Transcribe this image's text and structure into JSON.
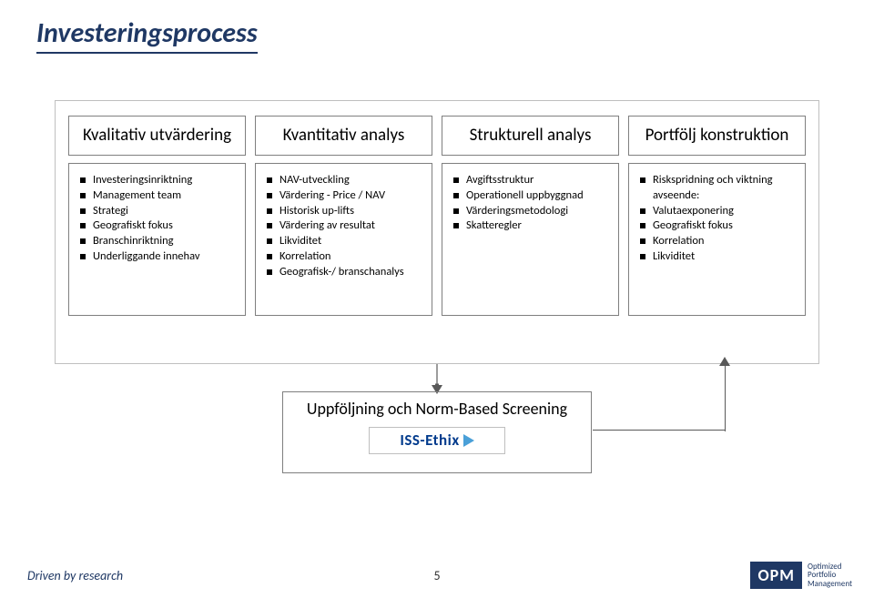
{
  "title": "Investeringsprocess",
  "columns": [
    {
      "heading": "Kvalitativ utvärdering",
      "items": [
        "Investeringsinriktning",
        "Management team",
        "Strategi",
        "Geografiskt fokus",
        "Branschinriktning",
        "Underliggande innehav"
      ]
    },
    {
      "heading": "Kvantitativ analys",
      "items": [
        "NAV-utveckling",
        "Värdering - Price / NAV",
        "Historisk up-lifts",
        "Värdering av resultat",
        "Likviditet",
        "Korrelation",
        "Geografisk-/ branschanalys"
      ]
    },
    {
      "heading": "Strukturell analys",
      "items": [
        "Avgiftsstruktur",
        "Operationell uppbyggnad",
        "Värderingsmetodologi",
        "Skatteregler"
      ]
    },
    {
      "heading": "Portfölj konstruktion",
      "items": [
        "Riskspridning och viktning avseende:",
        "Valutaexponering",
        "Geografiskt fokus",
        "Korrelation",
        "Likviditet"
      ]
    }
  ],
  "screening": {
    "title": "Uppföljning och Norm-Based Screening",
    "provider": "ISS-Ethix",
    "provider_color": "#003a8c",
    "triangle_color": "#4aa0d8"
  },
  "footer": {
    "left": "Driven by research",
    "page": "5",
    "logo_abbr": "OPM",
    "logo_lines": [
      "Optimized",
      "Portfolio",
      "Management"
    ]
  },
  "colors": {
    "title": "#1f3864",
    "box_border": "#7f7f7f",
    "outer_border": "#bfbfbf",
    "arrow": "#595959",
    "opm_bg": "#1f3864"
  }
}
